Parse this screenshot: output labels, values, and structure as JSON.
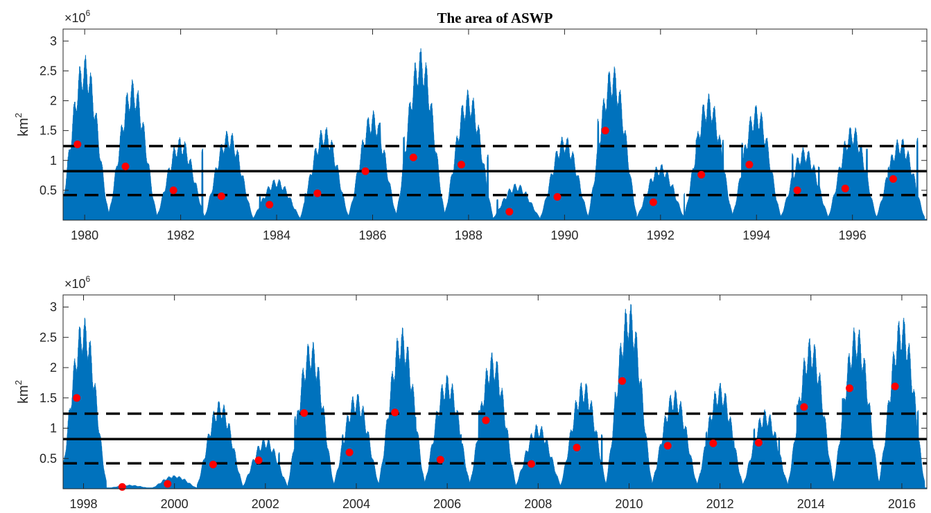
{
  "title": "The area of ASWP",
  "colors": {
    "area": "#0072BD",
    "marker": "#FF0000",
    "line": "#000000"
  },
  "chart_data": [
    {
      "type": "area",
      "ylabel": "km",
      "ylabel_power": "2",
      "y_multiplier": "×10",
      "y_multiplier_power": "6",
      "xlim": [
        1979.55,
        1997.55
      ],
      "ylim": [
        0,
        3.2
      ],
      "yticks": [
        0.5,
        1,
        1.5,
        2,
        2.5,
        3
      ],
      "ytick_labels": [
        "0.5",
        "1",
        "1.5",
        "2",
        "2.5",
        "3"
      ],
      "xticks": [
        1980,
        1982,
        1984,
        1986,
        1988,
        1990,
        1992,
        1994,
        1996
      ],
      "xtick_labels": [
        "1980",
        "1982",
        "1984",
        "1986",
        "1988",
        "1990",
        "1992",
        "1994",
        "1996"
      ],
      "mean_line": 0.82,
      "dashed_lines": [
        1.24,
        0.42
      ],
      "seasons": [
        {
          "year": 1980,
          "peak": 2.78,
          "spikes": [
            [
              0.6,
              1.6
            ]
          ]
        },
        {
          "year": 1981,
          "peak": 2.37,
          "spikes": [
            [
              0.1,
              1.8
            ]
          ]
        },
        {
          "year": 1982,
          "peak": 1.4,
          "spikes": [
            [
              0.45,
              1.2
            ],
            [
              0.6,
              1.25
            ]
          ]
        },
        {
          "year": 1983,
          "peak": 1.52,
          "spikes": [
            [
              0.2,
              1.1
            ]
          ]
        },
        {
          "year": 1984,
          "peak": 0.7,
          "spikes": [
            [
              -0.35,
              0.4
            ],
            [
              -0.15,
              0.38
            ]
          ]
        },
        {
          "year": 1985,
          "peak": 1.58,
          "spikes": [
            [
              -0.4,
              0.45
            ],
            [
              -0.2,
              0.5
            ]
          ]
        },
        {
          "year": 1986,
          "peak": 1.85,
          "spikes": [
            [
              0.15,
              1.65
            ]
          ]
        },
        {
          "year": 1987,
          "peak": 2.9,
          "spikes": [
            [
              -0.35,
              1.4
            ]
          ]
        },
        {
          "year": 1988,
          "peak": 2.2,
          "spikes": [
            [
              0.4,
              1.1
            ]
          ]
        },
        {
          "year": 1989,
          "peak": 0.62,
          "spikes": [
            [
              -0.4,
              0.35
            ],
            [
              -0.6,
              0.28
            ]
          ]
        },
        {
          "year": 1990,
          "peak": 1.43,
          "spikes": [
            [
              0.3,
              0.7
            ]
          ]
        },
        {
          "year": 1991,
          "peak": 2.61,
          "spikes": [
            [
              -0.3,
              1.7
            ]
          ]
        },
        {
          "year": 1992,
          "peak": 0.95,
          "spikes": [
            [
              0.25,
              0.6
            ],
            [
              0.5,
              0.45
            ]
          ]
        },
        {
          "year": 1993,
          "peak": 2.13,
          "spikes": [
            [
              -0.25,
              1.38
            ],
            [
              0.3,
              1.35
            ]
          ]
        },
        {
          "year": 1994,
          "peak": 1.95,
          "spikes": [
            [
              -0.3,
              1.3
            ]
          ]
        },
        {
          "year": 1995,
          "peak": 1.23,
          "spikes": [
            [
              -0.25,
              1.12
            ],
            [
              0.3,
              0.9
            ]
          ]
        },
        {
          "year": 1996,
          "peak": 1.6,
          "spikes": [
            [
              0.3,
              1.2
            ]
          ]
        },
        {
          "year": 1997,
          "peak": 1.4,
          "spikes": [
            [
              -0.25,
              0.9
            ],
            [
              0.35,
              1.38
            ]
          ]
        }
      ],
      "markers": [
        [
          1979.85,
          1.27
        ],
        [
          1980.85,
          0.9
        ],
        [
          1981.85,
          0.5
        ],
        [
          1982.85,
          0.4
        ],
        [
          1983.85,
          0.26
        ],
        [
          1984.85,
          0.45
        ],
        [
          1985.85,
          0.82
        ],
        [
          1986.85,
          1.05
        ],
        [
          1987.85,
          0.93
        ],
        [
          1988.85,
          0.14
        ],
        [
          1989.85,
          0.39
        ],
        [
          1990.85,
          1.5
        ],
        [
          1991.85,
          0.3
        ],
        [
          1992.85,
          0.76
        ],
        [
          1993.85,
          0.93
        ],
        [
          1994.85,
          0.5
        ],
        [
          1995.85,
          0.53
        ],
        [
          1996.85,
          0.69
        ]
      ]
    },
    {
      "type": "area",
      "ylabel": "km",
      "ylabel_power": "2",
      "y_multiplier": "×10",
      "y_multiplier_power": "6",
      "xlim": [
        1997.55,
        2016.55
      ],
      "ylim": [
        0,
        3.2
      ],
      "yticks": [
        0.5,
        1,
        1.5,
        2,
        2.5,
        3
      ],
      "ytick_labels": [
        "0.5",
        "1",
        "1.5",
        "2",
        "2.5",
        "3"
      ],
      "xticks": [
        1998,
        2000,
        2002,
        2004,
        2006,
        2008,
        2010,
        2012,
        2014,
        2016
      ],
      "xtick_labels": [
        "1998",
        "2000",
        "2002",
        "2004",
        "2006",
        "2008",
        "2010",
        "2012",
        "2014",
        "2016"
      ],
      "mean_line": 0.82,
      "dashed_lines": [
        1.24,
        0.42
      ],
      "seasons": [
        {
          "year": 1998,
          "peak": 2.85,
          "spikes": [
            [
              0.55,
              1.4
            ]
          ]
        },
        {
          "year": 1999,
          "peak": 0.06,
          "spikes": []
        },
        {
          "year": 2000,
          "peak": 0.22,
          "spikes": []
        },
        {
          "year": 2001,
          "peak": 1.47,
          "spikes": [
            [
              -0.25,
              0.35
            ],
            [
              0.3,
              0.4
            ]
          ]
        },
        {
          "year": 2002,
          "peak": 0.85,
          "spikes": [
            [
              0.3,
              0.6
            ]
          ]
        },
        {
          "year": 2003,
          "peak": 2.48,
          "spikes": [
            [
              -0.35,
              1.2
            ]
          ]
        },
        {
          "year": 2004,
          "peak": 1.6,
          "spikes": [
            [
              -0.3,
              0.9
            ],
            [
              0.25,
              0.7
            ]
          ]
        },
        {
          "year": 2005,
          "peak": 2.68,
          "spikes": [
            [
              0.3,
              1.2
            ]
          ]
        },
        {
          "year": 2006,
          "peak": 1.9,
          "spikes": [
            [
              -0.25,
              0.7
            ],
            [
              0.3,
              0.9
            ]
          ]
        },
        {
          "year": 2007,
          "peak": 2.27,
          "spikes": [
            [
              -0.3,
              1.3
            ]
          ]
        },
        {
          "year": 2008,
          "peak": 1.08,
          "spikes": [
            [
              0.55,
              0.85
            ],
            [
              0.7,
              0.8
            ]
          ]
        },
        {
          "year": 2009,
          "peak": 1.8,
          "spikes": [
            [
              0.4,
              0.9
            ]
          ]
        },
        {
          "year": 2010,
          "peak": 3.1,
          "spikes": [
            [
              -0.3,
              1.6
            ]
          ]
        },
        {
          "year": 2011,
          "peak": 1.65,
          "spikes": [
            [
              -0.2,
              1.1
            ]
          ]
        },
        {
          "year": 2012,
          "peak": 1.76,
          "spikes": [
            [
              -0.3,
              0.95
            ],
            [
              0.3,
              0.8
            ]
          ]
        },
        {
          "year": 2013,
          "peak": 1.32,
          "spikes": [
            [
              -0.25,
              1.0
            ],
            [
              0.3,
              0.85
            ]
          ]
        },
        {
          "year": 2014,
          "peak": 2.52,
          "spikes": [
            [
              -0.3,
              1.4
            ]
          ]
        },
        {
          "year": 2015,
          "peak": 2.72,
          "spikes": [
            [
              -0.3,
              1.5
            ]
          ]
        },
        {
          "year": 2016,
          "peak": 2.88,
          "spikes": [
            [
              0.35,
              1.3
            ]
          ]
        }
      ],
      "markers": [
        [
          1997.85,
          1.5
        ],
        [
          1998.85,
          0.03
        ],
        [
          1999.85,
          0.08
        ],
        [
          2000.85,
          0.4
        ],
        [
          2001.85,
          0.47
        ],
        [
          2002.85,
          1.25
        ],
        [
          2003.85,
          0.6
        ],
        [
          2004.85,
          1.26
        ],
        [
          2005.85,
          0.48
        ],
        [
          2006.85,
          1.13
        ],
        [
          2007.85,
          0.41
        ],
        [
          2008.85,
          0.68
        ],
        [
          2009.85,
          1.78
        ],
        [
          2010.85,
          0.71
        ],
        [
          2011.85,
          0.75
        ],
        [
          2012.85,
          0.76
        ],
        [
          2013.85,
          1.35
        ],
        [
          2014.85,
          1.66
        ],
        [
          2015.85,
          1.69
        ]
      ]
    }
  ]
}
